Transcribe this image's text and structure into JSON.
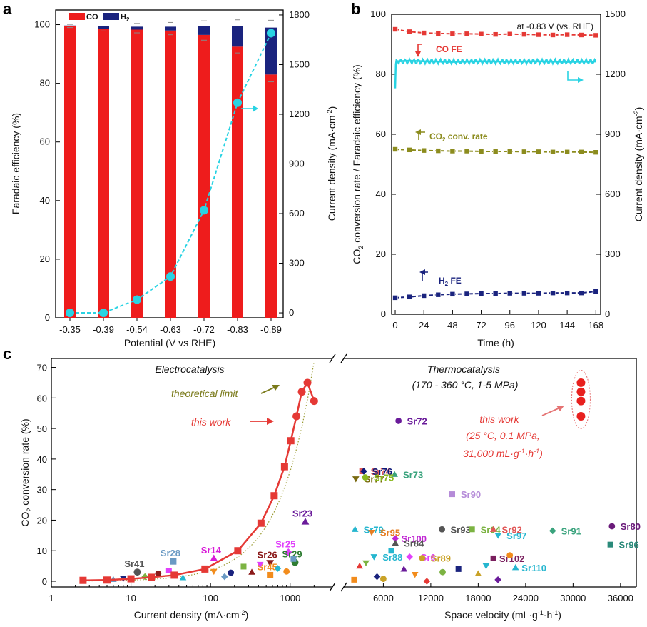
{
  "chart_data": [
    {
      "panel": "a",
      "type": "bar",
      "categories": [
        "-0.35",
        "-0.39",
        "-0.54",
        "-0.63",
        "-0.72",
        "-0.83",
        "-0.89"
      ],
      "xlabel": "Potential (V vs RHE)",
      "ylabel": "Faradaic efficiency (%)",
      "ylabel2": "Current density (mA·cm⁻²)",
      "ylim": [
        0,
        105
      ],
      "y2lim": [
        -30,
        1830
      ],
      "yticks": [
        0,
        20,
        40,
        60,
        80,
        100
      ],
      "y2ticks": [
        0,
        300,
        600,
        900,
        1200,
        1500,
        1800
      ],
      "legend": [
        {
          "name": "CO",
          "color": "#ee1c1c"
        },
        {
          "name": "H2",
          "label_main": "H",
          "label_sub": "2",
          "color": "#1a237e"
        }
      ],
      "series": [
        {
          "name": "CO",
          "values": [
            99.4,
            98.6,
            98.3,
            98.0,
            96.5,
            92.5,
            83.0
          ],
          "color": "#ee1c1c"
        },
        {
          "name": "H2",
          "values": [
            0.3,
            0.9,
            1.0,
            1.3,
            3.0,
            7.0,
            16.0
          ],
          "color": "#1a237e"
        },
        {
          "name": "Current density",
          "values": [
            0,
            0,
            80,
            220,
            620,
            1270,
            1690
          ],
          "color": "#29d3e3",
          "axis": "right"
        }
      ],
      "arrow_label": "→"
    },
    {
      "panel": "b",
      "type": "line",
      "xlabel": "Time (h)",
      "ylabel": "CO₂ conversion rate / Faradaic efficiency (%)",
      "ylabel2": "Current density (mA·cm⁻²)",
      "xlim": [
        -3,
        172
      ],
      "ylim": [
        0,
        100
      ],
      "y2lim": [
        0,
        1500
      ],
      "xticks": [
        0,
        24,
        48,
        72,
        96,
        120,
        144,
        168
      ],
      "yticks": [
        0,
        20,
        40,
        60,
        80,
        100
      ],
      "y2ticks": [
        0,
        300,
        600,
        900,
        1200,
        1500
      ],
      "annotation": "at -0.83 V (vs. RHE)",
      "series": [
        {
          "name": "CO FE",
          "label_main": "CO FE",
          "x": [
            0,
            12,
            24,
            36,
            48,
            60,
            72,
            84,
            96,
            108,
            120,
            132,
            144,
            156,
            168
          ],
          "values": [
            95.0,
            94.2,
            93.8,
            93.6,
            93.5,
            93.5,
            93.4,
            93.3,
            93.4,
            93.3,
            93.2,
            93.1,
            93.2,
            93.1,
            93.0
          ],
          "color": "#e53935"
        },
        {
          "name": "CO2 conv. rate",
          "label_main": "CO",
          "label_sub": "2",
          "label_rest": " conv. rate",
          "x": [
            0,
            12,
            24,
            36,
            48,
            60,
            72,
            84,
            96,
            108,
            120,
            132,
            144,
            156,
            168
          ],
          "values": [
            55.0,
            54.8,
            54.6,
            54.5,
            54.4,
            54.4,
            54.3,
            54.3,
            54.3,
            54.2,
            54.2,
            54.1,
            54.1,
            54.1,
            54.0
          ],
          "color": "#8c8c1e"
        },
        {
          "name": "H2 FE",
          "label_main": "H",
          "label_sub": "2",
          "label_rest": " FE",
          "x": [
            0,
            12,
            24,
            36,
            48,
            60,
            72,
            84,
            96,
            108,
            120,
            132,
            144,
            156,
            168
          ],
          "values": [
            5.5,
            5.8,
            6.2,
            6.5,
            6.7,
            6.8,
            6.9,
            6.9,
            7.0,
            7.0,
            7.0,
            7.1,
            7.1,
            7.1,
            7.6
          ],
          "color": "#1a237e"
        },
        {
          "name": "Current density",
          "axis": "right",
          "x": [
            0,
            0.5,
            1,
            2,
            12,
            24,
            48,
            72,
            96,
            120,
            144,
            168
          ],
          "values": [
            1130,
            1250,
            1270,
            1265,
            1268,
            1265,
            1262,
            1265,
            1263,
            1265,
            1262,
            1264
          ],
          "color": "#29d3e3"
        }
      ]
    },
    {
      "panel": "c",
      "type": "scatter",
      "ylabel": "CO₂ conversion rate (%)",
      "ylim": [
        0,
        72
      ],
      "yticks": [
        0,
        10,
        20,
        30,
        40,
        50,
        60,
        70
      ],
      "left": {
        "title": "Electrocatalysis",
        "xlabel": "Current density (mA·cm⁻²)",
        "xscale": "log",
        "xlim": [
          1,
          3000
        ],
        "xticks": [
          1,
          10,
          100,
          1000
        ],
        "theoretical_limit_label": "theoretical limit",
        "this_work_label": "this work",
        "theoretical_limit": {
          "x": [
            2.5,
            2000
          ],
          "y": [
            0.1,
            73
          ]
        },
        "this_work": {
          "x": [
            2.5,
            5,
            10,
            18,
            35,
            85,
            220,
            430,
            630,
            850,
            1020,
            1200,
            1400,
            1650,
            2000
          ],
          "y": [
            0.3,
            0.4,
            0.8,
            1.3,
            2.0,
            4.0,
            10.0,
            19.0,
            28.0,
            37.5,
            46.0,
            54.0,
            62.0,
            65.0,
            59.0
          ]
        },
        "references": [
          {
            "label": "Sr41",
            "x": 12,
            "y": 3.0,
            "color": "#555555"
          },
          {
            "label": "Sr28",
            "x": 34,
            "y": 6.5,
            "color": "#6a9ac4"
          },
          {
            "label": "Sr14",
            "x": 110,
            "y": 7.5,
            "color": "#d81bd8"
          },
          {
            "label": "Sr26",
            "x": 560,
            "y": 6.0,
            "color": "#8b1a1a"
          },
          {
            "label": "Sr25",
            "x": 950,
            "y": 9.5,
            "color": "#e040fb"
          },
          {
            "label": "Sr29",
            "x": 1150,
            "y": 6.2,
            "color": "#2e7d32"
          },
          {
            "label": "Sr45",
            "x": 560,
            "y": 2.0,
            "color": "#f28c1c"
          },
          {
            "label": "Sr23",
            "x": 1550,
            "y": 19.5,
            "color": "#6a1b9a"
          }
        ]
      },
      "right": {
        "title": "Thermocatalysis",
        "subtitle": "(170 - 360 °C, 1-5 MPa)",
        "xlabel": "Space velocity (mL·g⁻¹·h⁻¹)",
        "xlim": [
          1000,
          38000
        ],
        "xticks": [
          6000,
          12000,
          18000,
          24000,
          30000,
          36000
        ],
        "this_work_label_lines": [
          "this work",
          "(25 °C, 0.1 MPa,",
          "31,000 mL·g⁻¹·h⁻¹)"
        ],
        "this_work": {
          "x": [
            31000,
            31000,
            31000,
            31000
          ],
          "y": [
            54,
            59,
            62,
            65
          ]
        },
        "references": [
          {
            "label": "Sr72",
            "x": 9000,
            "y": 52.5,
            "color": "#6a1b9a"
          },
          {
            "label": "Sr74",
            "x": 4400,
            "y": 36.0,
            "color": "#e05555"
          },
          {
            "label": "Sr73",
            "x": 8500,
            "y": 35.0,
            "color": "#3aa37d"
          },
          {
            "label": "Sr77",
            "x": 3600,
            "y": 33.5,
            "color": "#7a6a10"
          },
          {
            "label": "Sr76",
            "x": 4600,
            "y": 36.0,
            "color": "#0d1a7a"
          },
          {
            "label": "Sr75",
            "x": 4800,
            "y": 34.0,
            "color": "#8ab81e"
          },
          {
            "label": "Sr90",
            "x": 15800,
            "y": 28.5,
            "color": "#b58bd8"
          },
          {
            "label": "Sr79",
            "x": 3500,
            "y": 17.0,
            "color": "#25b6cf"
          },
          {
            "label": "Sr95",
            "x": 5600,
            "y": 16.0,
            "color": "#e67e22"
          },
          {
            "label": "Sr100",
            "x": 8600,
            "y": 14.0,
            "color": "#c026d3"
          },
          {
            "label": "Sr93",
            "x": 14500,
            "y": 17.0,
            "color": "#555555"
          },
          {
            "label": "Sr94",
            "x": 18300,
            "y": 17.0,
            "color": "#7cb342"
          },
          {
            "label": "Sr92",
            "x": 21000,
            "y": 17.0,
            "color": "#e05555"
          },
          {
            "label": "Sr97",
            "x": 21600,
            "y": 15.0,
            "color": "#25b6cf"
          },
          {
            "label": "Sr91",
            "x": 28500,
            "y": 16.5,
            "color": "#3aa37d"
          },
          {
            "label": "Sr80",
            "x": 36000,
            "y": 18.0,
            "color": "#6a1b7a"
          },
          {
            "label": "Sr96",
            "x": 35800,
            "y": 12.0,
            "color": "#2a8a7a"
          },
          {
            "label": "Sr84",
            "x": 8600,
            "y": 12.5,
            "color": "#555555"
          },
          {
            "label": "Sr88",
            "x": 5900,
            "y": 8.0,
            "color": "#25b6cf"
          },
          {
            "label": "Sr6",
            "x": 10400,
            "y": 8.0,
            "color": "#e040fb"
          },
          {
            "label": "Sr89",
            "x": 12000,
            "y": 7.6,
            "color": "#c9a227"
          },
          {
            "label": "Sr102",
            "x": 21000,
            "y": 7.5,
            "color": "#7a1f5e"
          },
          {
            "label": "Sr110",
            "x": 23800,
            "y": 4.5,
            "color": "#25b6cf"
          }
        ]
      }
    }
  ]
}
